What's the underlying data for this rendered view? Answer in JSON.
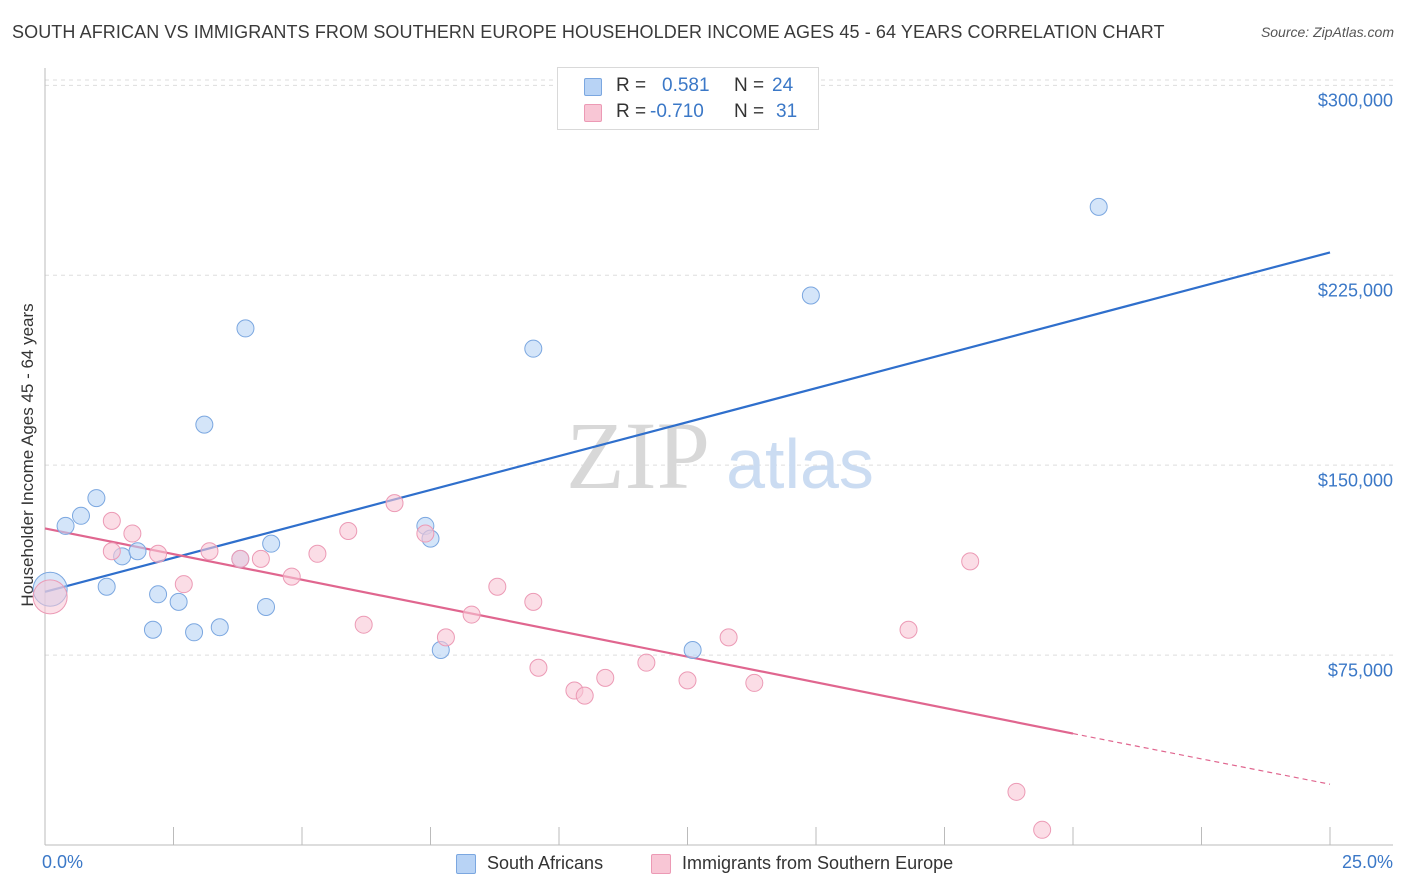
{
  "title": "SOUTH AFRICAN VS IMMIGRANTS FROM SOUTHERN EUROPE HOUSEHOLDER INCOME AGES 45 - 64 YEARS CORRELATION CHART",
  "source": "Source: ZipAtlas.com",
  "watermark": {
    "zip": "ZIP",
    "atlas": "atlas"
  },
  "stats": {
    "r_label": "R =",
    "n_label": "N =",
    "rows": [
      {
        "r": "0.581",
        "n": "24"
      },
      {
        "r": "-0.710",
        "n": "31"
      }
    ]
  },
  "legend": {
    "series1": "South Africans",
    "series2": "Immigrants from Southern Europe"
  },
  "chart_data": {
    "type": "scatter",
    "title": "SOUTH AFRICAN VS IMMIGRANTS FROM SOUTHERN EUROPE HOUSEHOLDER INCOME AGES 45 - 64 YEARS CORRELATION CHART",
    "xlabel": "",
    "ylabel": "Householder Income Ages 45 - 64 years",
    "xlim": [
      0,
      25
    ],
    "ylim": [
      0,
      310000
    ],
    "x_tick_labels": [
      "0.0%",
      "25.0%"
    ],
    "y_ticks": [
      {
        "value": 75000,
        "label": "$75,000"
      },
      {
        "value": 150000,
        "label": "$150,000"
      },
      {
        "value": 225000,
        "label": "$225,000"
      },
      {
        "value": 300000,
        "label": "$300,000"
      }
    ],
    "colors": {
      "series1_fill": "#b8d3f5",
      "series1_stroke": "#7ba7e0",
      "series1_line": "#2f6fcc",
      "series2_fill": "#f8c6d5",
      "series2_stroke": "#ec9ab5",
      "series2_line": "#e0668f",
      "tick_text": "#3b78c7",
      "grid": "#dddddd"
    },
    "series": [
      {
        "name": "South Africans",
        "r": 0.581,
        "n": 24,
        "trend": {
          "x0": 0,
          "y0": 100000,
          "x1": 25,
          "y1": 234000
        },
        "points": [
          {
            "x": 0.1,
            "y": 101000,
            "big": true
          },
          {
            "x": 0.4,
            "y": 126000
          },
          {
            "x": 0.7,
            "y": 130000
          },
          {
            "x": 1.0,
            "y": 137000
          },
          {
            "x": 1.2,
            "y": 102000
          },
          {
            "x": 1.5,
            "y": 114000
          },
          {
            "x": 1.8,
            "y": 116000
          },
          {
            "x": 2.1,
            "y": 85000
          },
          {
            "x": 2.2,
            "y": 99000
          },
          {
            "x": 2.6,
            "y": 96000
          },
          {
            "x": 2.9,
            "y": 84000
          },
          {
            "x": 3.1,
            "y": 166000
          },
          {
            "x": 3.4,
            "y": 86000
          },
          {
            "x": 3.8,
            "y": 113000
          },
          {
            "x": 3.9,
            "y": 204000
          },
          {
            "x": 4.3,
            "y": 94000
          },
          {
            "x": 4.4,
            "y": 119000
          },
          {
            "x": 7.4,
            "y": 126000
          },
          {
            "x": 7.5,
            "y": 121000
          },
          {
            "x": 7.7,
            "y": 77000
          },
          {
            "x": 9.5,
            "y": 196000
          },
          {
            "x": 12.6,
            "y": 77000
          },
          {
            "x": 14.9,
            "y": 217000
          },
          {
            "x": 20.5,
            "y": 252000
          }
        ]
      },
      {
        "name": "Immigrants from Southern Europe",
        "r": -0.71,
        "n": 31,
        "trend": {
          "x0": 0,
          "y0": 125000,
          "x1": 20,
          "y1": 44000,
          "dash_to_x": 25,
          "dash_to_y": 24000
        },
        "points": [
          {
            "x": 0.1,
            "y": 98000,
            "big": true
          },
          {
            "x": 1.3,
            "y": 116000
          },
          {
            "x": 1.3,
            "y": 128000
          },
          {
            "x": 1.7,
            "y": 123000
          },
          {
            "x": 2.2,
            "y": 115000
          },
          {
            "x": 2.7,
            "y": 103000
          },
          {
            "x": 3.2,
            "y": 116000
          },
          {
            "x": 3.8,
            "y": 113000
          },
          {
            "x": 4.2,
            "y": 113000
          },
          {
            "x": 4.8,
            "y": 106000
          },
          {
            "x": 5.3,
            "y": 115000
          },
          {
            "x": 5.9,
            "y": 124000
          },
          {
            "x": 6.2,
            "y": 87000
          },
          {
            "x": 6.8,
            "y": 135000
          },
          {
            "x": 7.4,
            "y": 123000
          },
          {
            "x": 7.8,
            "y": 82000
          },
          {
            "x": 8.3,
            "y": 91000
          },
          {
            "x": 8.8,
            "y": 102000
          },
          {
            "x": 9.5,
            "y": 96000
          },
          {
            "x": 9.6,
            "y": 70000
          },
          {
            "x": 10.3,
            "y": 61000
          },
          {
            "x": 10.5,
            "y": 59000
          },
          {
            "x": 10.9,
            "y": 66000
          },
          {
            "x": 11.7,
            "y": 72000
          },
          {
            "x": 12.5,
            "y": 65000
          },
          {
            "x": 13.3,
            "y": 82000
          },
          {
            "x": 13.8,
            "y": 64000
          },
          {
            "x": 16.8,
            "y": 85000
          },
          {
            "x": 18.0,
            "y": 112000
          },
          {
            "x": 18.9,
            "y": 21000
          },
          {
            "x": 19.4,
            "y": 6000
          }
        ]
      }
    ]
  }
}
